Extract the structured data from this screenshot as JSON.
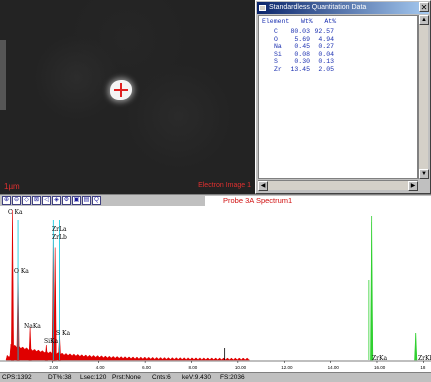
{
  "image": {
    "label_left": "1µm",
    "label_right": "Electron Image 1"
  },
  "quant_window": {
    "title": "Standardless Quantitation Data",
    "close_glyph": "✕",
    "header": "Element   Wt%   At%",
    "rows": [
      {
        "element": "C",
        "wt": "80.03",
        "at": "92.57"
      },
      {
        "element": "O",
        "wt": "5.69",
        "at": "4.94"
      },
      {
        "element": "Na",
        "wt": "0.45",
        "at": "0.27"
      },
      {
        "element": "Si",
        "wt": "0.08",
        "at": "0.04"
      },
      {
        "element": "S",
        "wt": "0.30",
        "at": "0.13"
      },
      {
        "element": "Zr",
        "wt": "13.45",
        "at": "2.05"
      }
    ]
  },
  "toolbar": {
    "buttons": [
      "zoom-in-icon",
      "zoom-out-icon",
      "expand-icon",
      "shrink-icon",
      "mark-icon",
      "overlay-icon",
      "settings-icon",
      "print-icon",
      "export-icon",
      "search-icon"
    ],
    "spectrum_title": "Probe 3A Spectrum1"
  },
  "status": {
    "cps": "CPS:1392",
    "dt": "DT%:38",
    "lsec": "Lsec:120",
    "prst": "Prst:None",
    "cnts": "Cnts:6",
    "kev": "keV:9.430",
    "fs": "FS:2036"
  },
  "chart_data": {
    "type": "line",
    "xlabel": "",
    "ylabel": "",
    "x_ticks": [
      "2.00",
      "4.00",
      "6.00",
      "8.00",
      "10.00",
      "12.00",
      "14.00",
      "16.00",
      "18"
    ],
    "xlim": [
      0,
      18.2
    ],
    "peaks": [
      {
        "label": "C Ka",
        "kev": 0.28,
        "height": 1.0
      },
      {
        "label": "O Ka",
        "kev": 0.52,
        "height": 0.6
      },
      {
        "label": "NaKa",
        "kev": 1.04,
        "height": 0.22
      },
      {
        "label": "SiKa",
        "kev": 1.74,
        "height": 0.1
      },
      {
        "label": "ZrLa",
        "kev": 2.04,
        "height": 0.8
      },
      {
        "label": "ZrLb",
        "kev": 2.12,
        "height": 0.75
      },
      {
        "label": "S Ka",
        "kev": 2.31,
        "height": 0.16
      },
      {
        "label": "ZrKa",
        "kev": 15.77,
        "height": 0.92
      },
      {
        "label": "ZrKb",
        "kev": 17.67,
        "height": 0.18
      }
    ],
    "colors": {
      "spectrum": "#e00000",
      "marker_cyan": "#00c8e0",
      "marker_green": "#30d030"
    }
  }
}
